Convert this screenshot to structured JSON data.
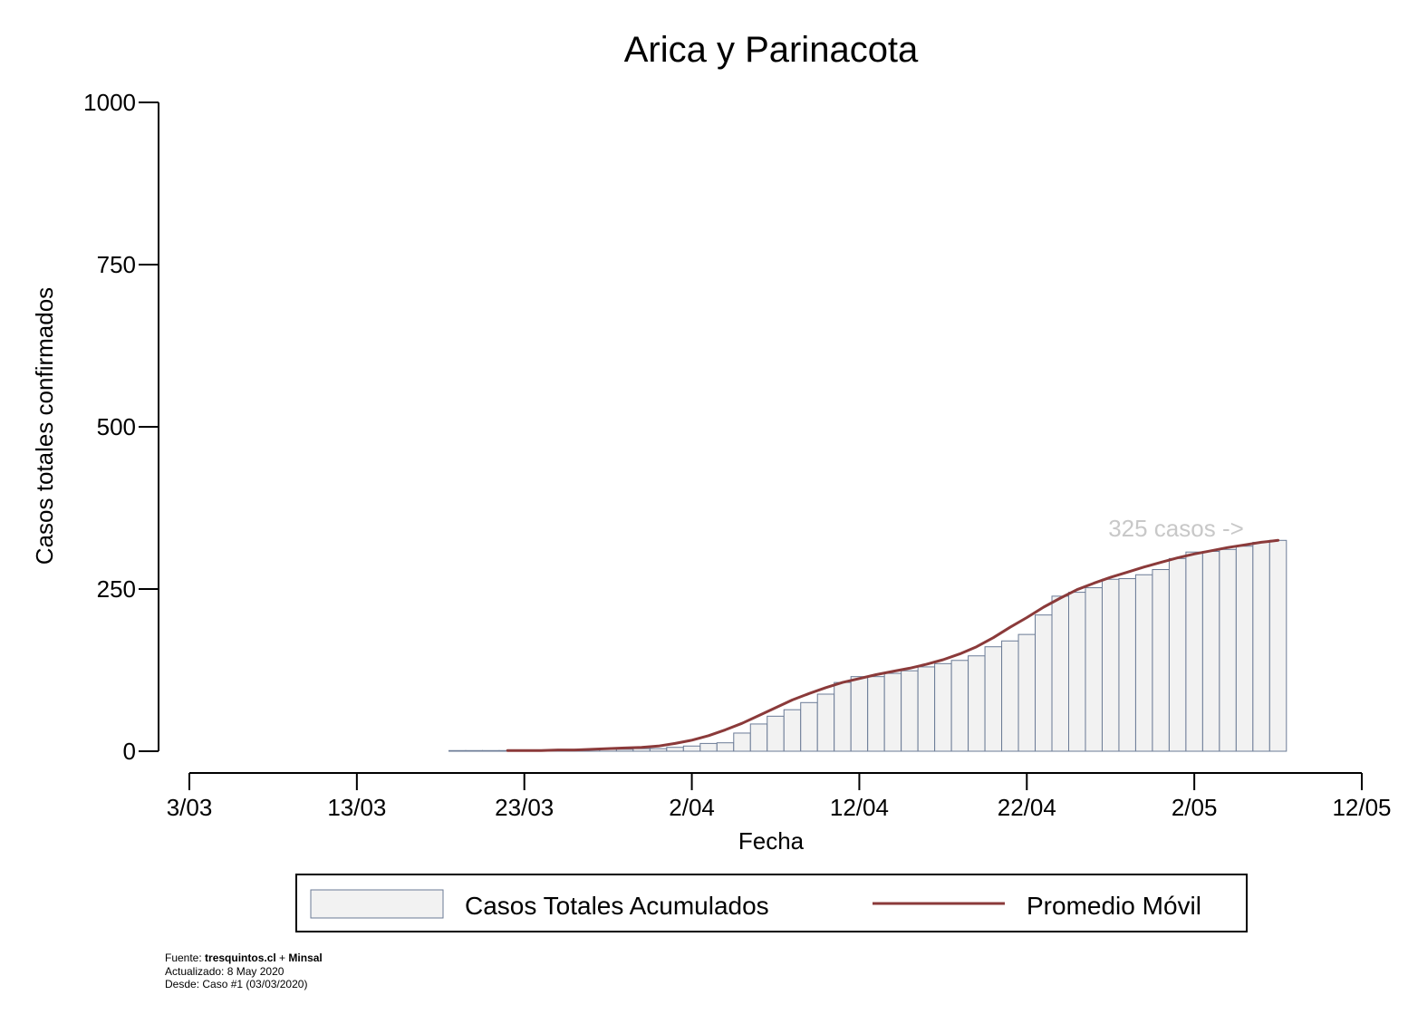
{
  "chart_data": {
    "type": "bar",
    "title": "Arica y Parinacota",
    "xlabel": "Fecha",
    "ylabel": "Casos totales confirmados",
    "ylim": [
      0,
      1000
    ],
    "yticks": [
      0,
      250,
      500,
      750,
      1000
    ],
    "x_start_date": "2020-03-03",
    "xticks": [
      {
        "day": 0,
        "label": "3/03"
      },
      {
        "day": 10,
        "label": "13/03"
      },
      {
        "day": 20,
        "label": "23/03"
      },
      {
        "day": 30,
        "label": "2/04"
      },
      {
        "day": 40,
        "label": "12/04"
      },
      {
        "day": 50,
        "label": "22/04"
      },
      {
        "day": 60,
        "label": "2/05"
      },
      {
        "day": 70,
        "label": "12/05"
      }
    ],
    "series": [
      {
        "name": "Casos Totales Acumulados",
        "kind": "bar",
        "fill": "#f2f2f2",
        "stroke": "#6b7b96",
        "first_day": 16,
        "values": [
          1,
          1,
          1,
          1,
          1,
          1,
          1,
          2,
          2,
          3,
          3,
          4,
          4,
          6,
          8,
          12,
          13,
          28,
          42,
          54,
          64,
          75,
          88,
          106,
          115,
          115,
          120,
          124,
          130,
          135,
          140,
          147,
          161,
          170,
          180,
          210,
          239,
          245,
          252,
          265,
          266,
          272,
          280,
          297,
          307,
          308,
          311,
          316,
          322,
          325
        ]
      },
      {
        "name": "Promedio Móvil",
        "kind": "line",
        "color": "#8b3a3a",
        "first_day": 19,
        "values": [
          1,
          1,
          1,
          2,
          2,
          3,
          4,
          5,
          6,
          8,
          12,
          17,
          24,
          33,
          43,
          55,
          67,
          79,
          89,
          98,
          106,
          112,
          118,
          123,
          128,
          134,
          141,
          150,
          161,
          175,
          191,
          206,
          222,
          236,
          249,
          259,
          268,
          276,
          284,
          291,
          298,
          304,
          309,
          314,
          318,
          322,
          325
        ]
      }
    ],
    "annotation": {
      "text": "325 casos ->",
      "color": "#c8c8c8"
    },
    "legend": {
      "position": "bottom",
      "items": [
        "Casos Totales Acumulados",
        "Promedio Móvil"
      ]
    }
  },
  "footer": {
    "source_prefix": "Fuente: ",
    "source_bold_1": "tresquintos.cl",
    "source_mid": " + ",
    "source_bold_2": "Minsal",
    "updated": "Actualizado: 8 May 2020",
    "since": "Desde: Caso #1  (03/03/2020)"
  }
}
